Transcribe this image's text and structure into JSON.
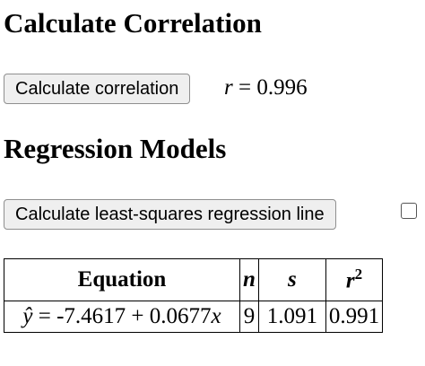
{
  "correlation": {
    "title": "Calculate Correlation",
    "button": "Calculate correlation",
    "result": {
      "symbol": "r",
      "relation": "=",
      "value": "0.996"
    }
  },
  "regression": {
    "title": "Regression Models",
    "button": "Calculate least-squares regression line",
    "table": {
      "header": {
        "equation": "Equation",
        "n": "n",
        "s": "s",
        "r2": {
          "base": "r",
          "superscript": "2"
        }
      },
      "rows": [
        {
          "equation": {
            "lhs": "ŷ",
            "middle": "= -7.4617 + 0.0677",
            "variable": "x"
          },
          "n": "9",
          "s": "1.091",
          "r2": "0.991"
        }
      ]
    }
  }
}
